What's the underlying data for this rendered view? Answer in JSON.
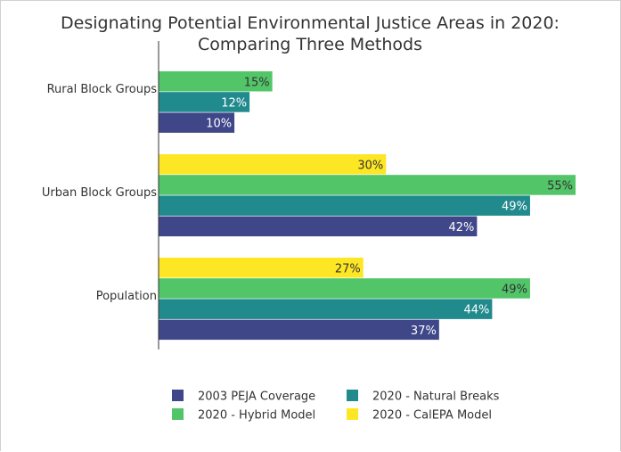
{
  "chart_data": {
    "type": "bar",
    "orientation": "horizontal",
    "title_lines": [
      "Designating Potential Environmental Justice Areas in 2020:",
      "Comparing Three Methods"
    ],
    "categories": [
      "Rural Block Groups",
      "Urban Block Groups",
      "Population"
    ],
    "value_unit": "%",
    "xlim": [
      0,
      55
    ],
    "series": [
      {
        "name": "2003 PEJA Coverage",
        "color": "#3f4789",
        "label_color": "#ffffff",
        "values": [
          10,
          42,
          37
        ]
      },
      {
        "name": "2020 - Natural Breaks",
        "color": "#218a8d",
        "label_color": "#ffffff",
        "values": [
          12,
          49,
          44
        ]
      },
      {
        "name": "2020 - Hybrid Model",
        "color": "#52c569",
        "label_color": "#333333",
        "values": [
          15,
          55,
          49
        ]
      },
      {
        "name": "2020 - CalEPA Model",
        "color": "#fde725",
        "label_color": "#333333",
        "values": [
          null,
          30,
          27
        ]
      }
    ],
    "legend_placement": "bottom",
    "grid": false
  }
}
